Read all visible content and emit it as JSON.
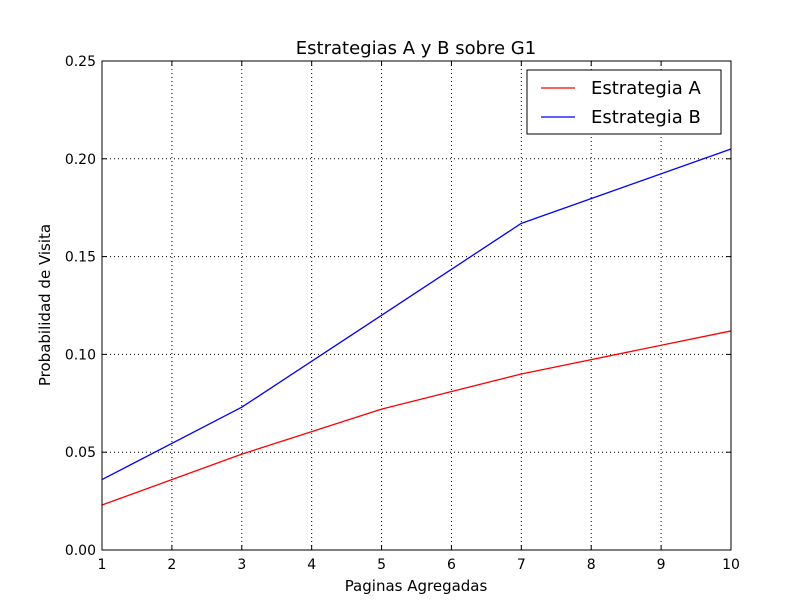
{
  "chart_data": {
    "type": "line",
    "title": "Estrategias A y B sobre G1",
    "xlabel": "Paginas Agregadas",
    "ylabel": "Probabilidad de Visita",
    "xlim": [
      1,
      10
    ],
    "ylim": [
      0,
      0.25
    ],
    "x_ticks": [
      "1",
      "2",
      "3",
      "4",
      "5",
      "6",
      "7",
      "8",
      "9",
      "10"
    ],
    "y_ticks": [
      "0.00",
      "0.05",
      "0.10",
      "0.15",
      "0.20",
      "0.25"
    ],
    "grid": true,
    "legend_position": "top-right",
    "x": [
      1,
      3,
      5,
      7,
      10
    ],
    "series": [
      {
        "name": "Estrategia A",
        "color": "#ff0000",
        "values": [
          0.023,
          0.049,
          0.072,
          0.09,
          0.112
        ]
      },
      {
        "name": "Estrategia B",
        "color": "#0000ff",
        "values": [
          0.036,
          0.073,
          0.12,
          0.167,
          0.205
        ]
      }
    ]
  }
}
